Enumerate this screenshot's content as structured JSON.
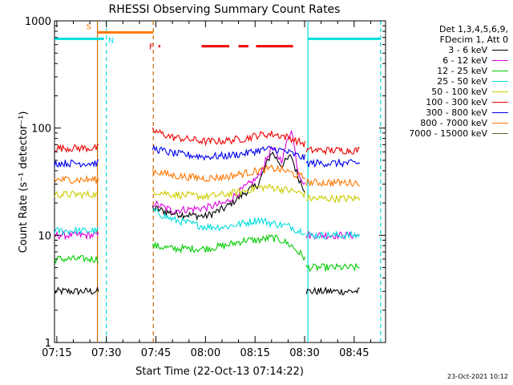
{
  "chart_data": {
    "type": "line",
    "title": "RHESSI Observing Summary Count Rates",
    "xlabel": "Start Time (22-Oct-13 07:14:22)",
    "ylabel": "Count Rate (s⁻¹ detector⁻¹)",
    "xaxis_start_minutes": 434.3,
    "xlim_minutes": [
      434.3,
      534.5
    ],
    "x_ticks": [
      "07:15",
      "07:30",
      "07:45",
      "08:00",
      "08:15",
      "08:30",
      "08:45"
    ],
    "x_tick_minutes": [
      435,
      450,
      465,
      480,
      495,
      510,
      525
    ],
    "ylim": [
      1,
      1000
    ],
    "yscale": "log",
    "y_ticks": [
      "1",
      "10",
      "100",
      "1000"
    ],
    "y_tick_values": [
      1,
      10,
      100,
      1000
    ],
    "legend_header": [
      "Det 1,3,4,5,6,9,",
      "FDecim 1, Att 0"
    ],
    "legend_position": "right",
    "series": [
      {
        "name": "3 - 6 keV",
        "color": "#000000",
        "segments": [
          {
            "x": [
              434.3,
              448
            ],
            "y": [
              3,
              3
            ]
          },
          {
            "x": [
              464,
              470,
              480,
              486,
              492,
              496,
              500,
              503,
              506,
              508,
              510.5
            ],
            "y": [
              18,
              16,
              15,
              18,
              25,
              30,
              60,
              45,
              55,
              35,
              25
            ]
          },
          {
            "x": [
              510.5,
              527
            ],
            "y": [
              3,
              3
            ]
          }
        ]
      },
      {
        "name": "6 - 12 keV",
        "color": "#dd00dd",
        "segments": [
          {
            "x": [
              434.3,
              448
            ],
            "y": [
              10,
              10
            ]
          },
          {
            "x": [
              464,
              470,
              480,
              486,
              492,
              496,
              500,
              503,
              506,
              508,
              510.5
            ],
            "y": [
              20,
              17,
              18,
              20,
              28,
              35,
              65,
              50,
              100,
              40,
              28
            ]
          },
          {
            "x": [
              510.5,
              527
            ],
            "y": [
              10,
              10
            ]
          }
        ]
      },
      {
        "name": "12 - 25 keV",
        "color": "#00cc00",
        "segments": [
          {
            "x": [
              434.3,
              448
            ],
            "y": [
              6,
              6
            ]
          },
          {
            "x": [
              464,
              470,
              480,
              486,
              492,
              496,
              500,
              503,
              506,
              508,
              510.5
            ],
            "y": [
              8,
              7.5,
              7.5,
              8,
              9,
              9,
              9.5,
              9,
              8,
              7,
              6
            ]
          },
          {
            "x": [
              510.5,
              527
            ],
            "y": [
              5,
              5
            ]
          }
        ]
      },
      {
        "name": "25 - 50 keV",
        "color": "#00dddd",
        "segments": [
          {
            "x": [
              434.3,
              448
            ],
            "y": [
              11,
              11
            ]
          },
          {
            "x": [
              464,
              470,
              480,
              486,
              492,
              496,
              500,
              503,
              506,
              508,
              510.5
            ],
            "y": [
              17,
              14,
              12,
              12,
              13,
              14,
              13,
              12.5,
              12,
              11,
              11
            ]
          },
          {
            "x": [
              510.5,
              527
            ],
            "y": [
              10,
              10
            ]
          }
        ]
      },
      {
        "name": "50 - 100 keV",
        "color": "#cccc00",
        "segments": [
          {
            "x": [
              434.3,
              448
            ],
            "y": [
              24,
              24
            ]
          },
          {
            "x": [
              464,
              470,
              480,
              486,
              492,
              496,
              500,
              503,
              506,
              508,
              510.5
            ],
            "y": [
              26,
              24,
              23,
              24,
              26,
              28,
              28,
              27,
              26,
              25,
              24
            ]
          },
          {
            "x": [
              510.5,
              527
            ],
            "y": [
              22,
              22
            ]
          }
        ]
      },
      {
        "name": "100 - 300 keV",
        "color": "#ee0000",
        "segments": [
          {
            "x": [
              434.3,
              448
            ],
            "y": [
              65,
              65
            ]
          },
          {
            "x": [
              464,
              470,
              480,
              486,
              492,
              496,
              500,
              503,
              506,
              508,
              510.5
            ],
            "y": [
              95,
              82,
              75,
              76,
              80,
              86,
              88,
              85,
              80,
              75,
              70
            ]
          },
          {
            "x": [
              510.5,
              527
            ],
            "y": [
              62,
              62
            ]
          }
        ]
      },
      {
        "name": "300 - 800 keV",
        "color": "#0000ee",
        "segments": [
          {
            "x": [
              434.3,
              448
            ],
            "y": [
              47,
              47
            ]
          },
          {
            "x": [
              464,
              470,
              480,
              486,
              492,
              496,
              500,
              503,
              506,
              508,
              510.5
            ],
            "y": [
              65,
              58,
              54,
              55,
              58,
              62,
              64,
              62,
              58,
              55,
              52
            ]
          },
          {
            "x": [
              510.5,
              527
            ],
            "y": [
              47,
              47
            ]
          }
        ]
      },
      {
        "name": "800 - 7000 keV",
        "color": "#ff7700",
        "segments": [
          {
            "x": [
              434.3,
              448
            ],
            "y": [
              33,
              33
            ]
          },
          {
            "x": [
              464,
              470,
              480,
              486,
              492,
              496,
              500,
              503,
              506,
              508,
              510.5
            ],
            "y": [
              40,
              36,
              34,
              35,
              38,
              40,
              42,
              41,
              38,
              36,
              34
            ]
          },
          {
            "x": [
              510.5,
              527
            ],
            "y": [
              31,
              31
            ]
          }
        ]
      },
      {
        "name": "7000 - 15000 keV",
        "color": "#556b2f",
        "segments": []
      }
    ],
    "vertical_markers": [
      {
        "color": "#cc6600",
        "style": "solid",
        "x": 447.3
      },
      {
        "color": "#cc6600",
        "style": "dashed",
        "x": 464.2
      },
      {
        "color": "#00dddd",
        "style": "dashed",
        "x": 450.0
      },
      {
        "color": "#00dddd",
        "style": "solid",
        "x": 511.0
      },
      {
        "color": "#00dddd",
        "style": "dashed",
        "x": 533.0
      }
    ],
    "flag_bars": [
      {
        "label": "S",
        "color": "#ff7700",
        "segments": [
          [
            447.3,
            464.2
          ]
        ]
      },
      {
        "label": "N",
        "color": "#00dddd",
        "segments": [
          [
            434.3,
            449.3
          ],
          [
            511.0,
            533.0
          ]
        ]
      },
      {
        "label": "F",
        "color": "#ee0000",
        "segments": [
          [
            465.8,
            466.3
          ],
          [
            478.8,
            487.2
          ],
          [
            490.0,
            493.0
          ],
          [
            495.3,
            506.5
          ]
        ]
      }
    ],
    "colors": {
      "axis": "#000000",
      "background": "#ffffff"
    }
  },
  "footer_timestamp": "23-Oct-2021 10:12"
}
